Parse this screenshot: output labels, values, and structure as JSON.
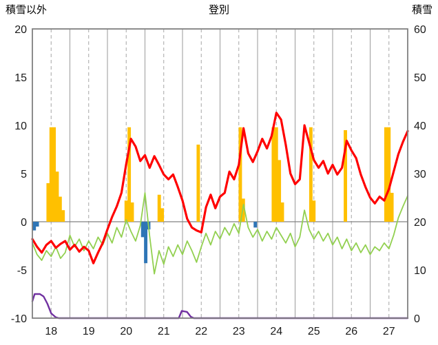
{
  "header": {
    "left_axis_title": "積雪以外",
    "title": "登別",
    "right_axis_title": "積雪"
  },
  "chart_data": {
    "type": "line",
    "title": "登別",
    "left_axis_label": "積雪以外",
    "right_axis_label": "積雪",
    "xlim": [
      0,
      10
    ],
    "left_ylim": [
      -10,
      20
    ],
    "right_ylim": [
      0,
      60
    ],
    "left_ticks": [
      20,
      15,
      10,
      5,
      0,
      -5,
      -10
    ],
    "right_ticks": [
      60,
      50,
      40,
      30,
      20,
      10,
      0
    ],
    "x_tick_labels": [
      "18",
      "19",
      "20",
      "21",
      "22",
      "23",
      "24",
      "25",
      "26",
      "27"
    ],
    "x_tick_pos": [
      0.5,
      1.5,
      2.5,
      3.5,
      4.5,
      5.5,
      6.5,
      7.5,
      8.5,
      9.5
    ],
    "grid": {
      "vertical_solid_every": 1,
      "vertical_dashed_every_half": true,
      "horizontal": false,
      "zero_line": true
    },
    "style": {
      "grid_solid": "#9a9a9a",
      "grid_dashed": "#a6a6a6",
      "zero_line": "#808080",
      "border": "#7f7f7f"
    },
    "series": [
      {
        "name": "orange-bars",
        "type": "bar",
        "axis": "left",
        "color": "#ffc000",
        "bar_width": 0.09,
        "points": [
          [
            0.42,
            4.0
          ],
          [
            0.5,
            9.8
          ],
          [
            0.58,
            9.8
          ],
          [
            0.66,
            5.2
          ],
          [
            0.74,
            2.6
          ],
          [
            0.82,
            1.2
          ],
          [
            2.5,
            2.2
          ],
          [
            2.58,
            9.8
          ],
          [
            2.66,
            2.0
          ],
          [
            3.38,
            2.8
          ],
          [
            3.46,
            1.4
          ],
          [
            4.42,
            8.0
          ],
          [
            5.54,
            9.8
          ],
          [
            5.62,
            2.4
          ],
          [
            6.42,
            9.8
          ],
          [
            6.5,
            9.8
          ],
          [
            6.58,
            6.4
          ],
          [
            6.66,
            2.0
          ],
          [
            7.42,
            9.8
          ],
          [
            7.5,
            2.2
          ],
          [
            8.34,
            9.5
          ],
          [
            9.42,
            9.8
          ],
          [
            9.5,
            9.8
          ],
          [
            9.58,
            3.0
          ]
        ]
      },
      {
        "name": "blue-bars",
        "type": "bar",
        "axis": "left",
        "color": "#2e75b6",
        "bar_width": 0.09,
        "points": [
          [
            0.05,
            -0.9
          ],
          [
            0.13,
            -0.5
          ],
          [
            2.94,
            -1.6
          ],
          [
            3.02,
            -4.3
          ],
          [
            3.1,
            -0.8
          ],
          [
            5.94,
            -0.6
          ]
        ]
      },
      {
        "name": "purple-line",
        "type": "line",
        "axis": "right",
        "color": "#7030a0",
        "width": 2.4,
        "points": [
          [
            0,
            3.5
          ],
          [
            0.06,
            5
          ],
          [
            0.2,
            5
          ],
          [
            0.3,
            4.5
          ],
          [
            0.4,
            3
          ],
          [
            0.5,
            1
          ],
          [
            0.62,
            0.2
          ],
          [
            0.7,
            0
          ],
          [
            3.9,
            0
          ],
          [
            3.98,
            1.5
          ],
          [
            4.12,
            1.3
          ],
          [
            4.22,
            0.3
          ],
          [
            4.3,
            0
          ],
          [
            10,
            0
          ]
        ]
      },
      {
        "name": "green-line",
        "type": "line",
        "axis": "left",
        "color": "#92d050",
        "width": 1.8,
        "t0": 0,
        "dt": 0.125,
        "values": [
          -2.2,
          -3.4,
          -4.0,
          -3.0,
          -3.6,
          -2.6,
          -3.8,
          -3.2,
          -1.4,
          -2.6,
          -1.8,
          -3.0,
          -2.0,
          -2.8,
          -1.6,
          -2.4,
          -1.2,
          -2.2,
          -0.6,
          -1.6,
          0.2,
          -1.0,
          -2.0,
          -0.4,
          3.0,
          -1.5,
          -5.4,
          -3.0,
          -4.4,
          -2.6,
          -3.6,
          -2.4,
          -3.4,
          -2.0,
          -3.0,
          -4.2,
          -2.6,
          -1.2,
          -2.4,
          -1.0,
          -1.8,
          -0.6,
          -1.4,
          -0.2,
          -1.2,
          1.8,
          -0.6,
          -1.6,
          -0.8,
          -2.0,
          -1.0,
          -1.8,
          -0.6,
          -1.4,
          -2.2,
          -1.2,
          -2.6,
          -1.6,
          1.2,
          -0.8,
          -1.8,
          -1.0,
          -2.0,
          -1.2,
          -2.4,
          -1.6,
          -2.8,
          -1.8,
          -3.0,
          -2.2,
          -3.2,
          -2.4,
          -3.4,
          -2.6,
          -3.0,
          -2.2,
          -2.8,
          -1.4,
          0.4,
          1.6,
          2.7
        ]
      },
      {
        "name": "red-line",
        "type": "line",
        "axis": "left",
        "color": "#ff0000",
        "width": 3.2,
        "t0": 0,
        "dt": 0.125,
        "values": [
          -1.8,
          -2.6,
          -3.2,
          -2.4,
          -2.0,
          -2.7,
          -2.3,
          -2.0,
          -2.9,
          -2.4,
          -3.1,
          -2.6,
          -3.0,
          -4.3,
          -3.2,
          -2.2,
          -0.8,
          0.5,
          1.6,
          3.0,
          6.0,
          8.6,
          7.8,
          6.3,
          6.9,
          5.6,
          6.8,
          5.9,
          4.9,
          4.4,
          4.9,
          3.6,
          2.2,
          0.3,
          -0.6,
          -0.9,
          -1.1,
          1.5,
          2.8,
          1.4,
          2.6,
          3.0,
          5.2,
          4.4,
          5.9,
          9.7,
          7.1,
          6.2,
          7.3,
          8.6,
          7.6,
          8.9,
          11.3,
          10.6,
          8.0,
          5.0,
          3.9,
          4.4,
          10.0,
          8.2,
          6.4,
          5.6,
          6.3,
          5.0,
          5.9,
          4.9,
          5.6,
          8.4,
          7.4,
          6.6,
          4.9,
          3.6,
          2.5,
          1.9,
          2.6,
          2.2,
          3.4,
          5.2,
          7.0,
          8.3,
          9.4
        ]
      }
    ]
  }
}
